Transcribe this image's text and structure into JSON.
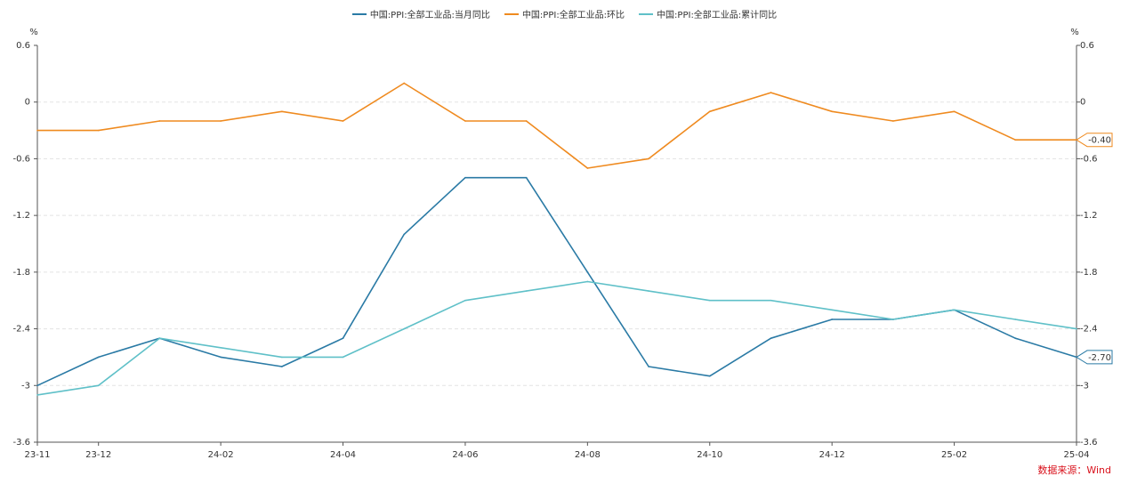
{
  "source": "数据来源：Wind",
  "chart_data": {
    "type": "line",
    "x": [
      "23-11",
      "23-12",
      "24-01",
      "24-02",
      "24-03",
      "24-04",
      "24-05",
      "24-06",
      "24-07",
      "24-08",
      "24-09",
      "24-10",
      "24-11",
      "24-12",
      "25-01",
      "25-02",
      "25-03",
      "25-04"
    ],
    "x_tick_labels": [
      "23-11",
      "23-12",
      "24-02",
      "24-04",
      "24-06",
      "24-08",
      "24-10",
      "24-12",
      "25-02",
      "25-04"
    ],
    "y_ticks": [
      "0.6",
      "0",
      "-0.6",
      "-1.2",
      "-1.8",
      "-2.4",
      "-3",
      "-3.6"
    ],
    "ylim": [
      -3.6,
      0.6
    ],
    "ylabel_left": "%",
    "ylabel_right": "%",
    "grid": true,
    "legend_position": "top-center",
    "series": [
      {
        "name": "中国:PPI:全部工业品:当月同比",
        "color": "#2a7aa5",
        "values": [
          -3.0,
          -2.7,
          -2.5,
          -2.7,
          -2.8,
          -2.5,
          -1.4,
          -0.8,
          -0.8,
          -1.8,
          -2.8,
          -2.9,
          -2.5,
          -2.3,
          -2.3,
          -2.2,
          -2.5,
          -2.7
        ],
        "end_label": "-2.70"
      },
      {
        "name": "中国:PPI:全部工业品:环比",
        "color": "#ef8a1f",
        "values": [
          -0.3,
          -0.3,
          -0.2,
          -0.2,
          -0.1,
          -0.2,
          0.2,
          -0.2,
          -0.2,
          -0.7,
          -0.6,
          -0.1,
          0.1,
          -0.1,
          -0.2,
          -0.1,
          -0.4,
          -0.4
        ],
        "end_label": "-0.40"
      },
      {
        "name": "中国:PPI:全部工业品:累计同比",
        "color": "#5fc0c8",
        "values": [
          -3.1,
          -3.0,
          -2.5,
          -2.6,
          -2.7,
          -2.7,
          -2.4,
          -2.1,
          -2.0,
          -1.9,
          -2.0,
          -2.1,
          -2.1,
          -2.2,
          -2.3,
          -2.2,
          -2.3,
          -2.4
        ]
      }
    ]
  }
}
